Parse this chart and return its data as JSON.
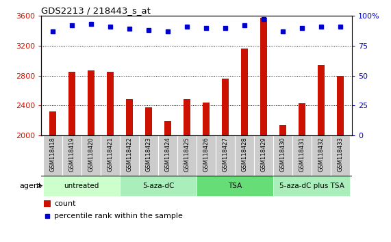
{
  "title": "GDS2213 / 218443_s_at",
  "samples": [
    "GSM118418",
    "GSM118419",
    "GSM118420",
    "GSM118421",
    "GSM118422",
    "GSM118423",
    "GSM118424",
    "GSM118425",
    "GSM118426",
    "GSM118427",
    "GSM118428",
    "GSM118429",
    "GSM118430",
    "GSM118431",
    "GSM118432",
    "GSM118433"
  ],
  "counts": [
    2320,
    2850,
    2870,
    2850,
    2490,
    2380,
    2190,
    2490,
    2440,
    2760,
    3160,
    3570,
    2140,
    2430,
    2940,
    2800
  ],
  "percentile_ranks": [
    87,
    92,
    93,
    91,
    89,
    88,
    87,
    91,
    90,
    90,
    92,
    97,
    87,
    90,
    91,
    91
  ],
  "bar_color": "#CC1100",
  "dot_color": "#0000CC",
  "ylim_left": [
    2000,
    3600
  ],
  "ylim_right": [
    0,
    100
  ],
  "yticks_left": [
    2000,
    2400,
    2800,
    3200,
    3600
  ],
  "yticks_right": [
    0,
    25,
    50,
    75,
    100
  ],
  "groups": [
    {
      "label": "untreated",
      "start": 0,
      "end": 4,
      "color": "#CCFFCC"
    },
    {
      "label": "5-aza-dC",
      "start": 4,
      "end": 8,
      "color": "#AAEEBB"
    },
    {
      "label": "TSA",
      "start": 8,
      "end": 12,
      "color": "#66DD77"
    },
    {
      "label": "5-aza-dC plus TSA",
      "start": 12,
      "end": 16,
      "color": "#AAEEBB"
    }
  ],
  "legend_count_color": "#CC1100",
  "legend_dot_color": "#0000CC",
  "agent_label": "agent",
  "tick_color_left": "#CC1100",
  "tick_color_right": "#0000CC",
  "bar_width": 0.35
}
